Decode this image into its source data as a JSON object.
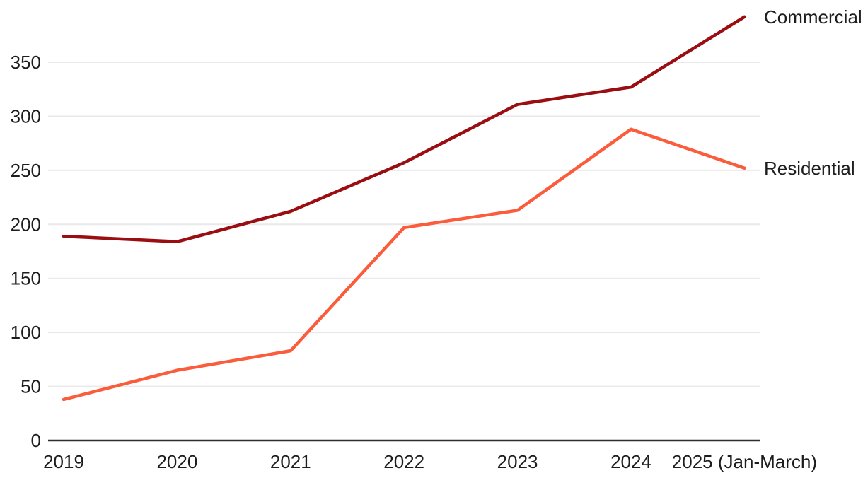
{
  "chart_data": {
    "type": "line",
    "categories": [
      "2019",
      "2020",
      "2021",
      "2022",
      "2023",
      "2024",
      "2025 (Jan-March)"
    ],
    "series": [
      {
        "name": "Commercial",
        "color": "#9a0e12",
        "values": [
          189,
          184,
          212,
          257,
          311,
          327,
          392
        ]
      },
      {
        "name": "Residential",
        "color": "#fb5c3c",
        "values": [
          38,
          65,
          83,
          197,
          213,
          288,
          252
        ]
      }
    ],
    "yticks": [
      0,
      50,
      100,
      150,
      200,
      250,
      300,
      350
    ],
    "ylim": [
      0,
      400
    ],
    "title": "",
    "xlabel": "",
    "ylabel": "",
    "grid": "horizontal",
    "legend_position": "right-end-labels",
    "colors": {
      "background": "#ffffff",
      "text": "#1d1d1d",
      "gridline": "#e9e9e9",
      "axis": "#2e2e2e"
    }
  }
}
